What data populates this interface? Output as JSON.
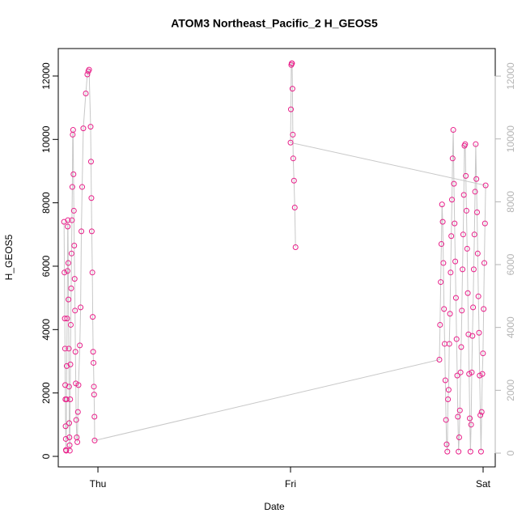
{
  "chart_data": {
    "type": "scatter-line",
    "title": "ATOM3 Northeast_Pacific_2 H_GEOS5",
    "xlabel": "Date",
    "ylabel": "H_GEOS5",
    "x": [
      -0.176,
      -0.174,
      -0.172,
      -0.171,
      -0.17,
      -0.169,
      -0.168,
      -0.167,
      -0.166,
      -0.165,
      -0.163,
      -0.162,
      -0.16,
      -0.158,
      -0.157,
      -0.156,
      -0.154,
      -0.153,
      -0.151,
      -0.15,
      -0.149,
      -0.148,
      -0.147,
      -0.146,
      -0.144,
      -0.143,
      -0.141,
      -0.139,
      -0.137,
      -0.135,
      -0.133,
      -0.131,
      -0.129,
      -0.127,
      -0.125,
      -0.123,
      -0.121,
      -0.119,
      -0.117,
      -0.115,
      -0.113,
      -0.11,
      -0.107,
      -0.104,
      -0.101,
      -0.094,
      -0.09,
      -0.086,
      -0.082,
      -0.076,
      -0.063,
      -0.055,
      -0.05,
      -0.046,
      -0.038,
      -0.036,
      -0.034,
      -0.032,
      -0.029,
      -0.027,
      -0.025,
      -0.023,
      -0.021,
      -0.02,
      -0.018,
      -0.017,
      1.773,
      1.7764,
      1.7799,
      1.7833,
      1.7867,
      1.7902,
      1.7936,
      1.797,
      1.8004,
      1.8039,
      1.8073,
      1.8107,
      1.8142,
      1.8176,
      1.821,
      1.8245,
      1.8279,
      1.8313,
      1.8347,
      1.8382,
      1.8416,
      1.845,
      1.8485,
      1.8519,
      1.8553,
      1.8588,
      1.8622,
      1.8656,
      1.869,
      1.8725,
      1.8759,
      1.8793,
      1.8828,
      1.8862,
      1.8896,
      1.8931,
      1.8965,
      1.8999,
      1.9033,
      1.9068,
      1.9102,
      1.9136,
      1.9171,
      1.9205,
      1.9239,
      1.9274,
      1.9308,
      1.9342,
      1.9376,
      1.9411,
      1.9445,
      1.9479,
      1.9514,
      1.9548,
      1.9582,
      1.9617,
      1.9651,
      1.9685,
      1.9719,
      1.9754,
      1.9788,
      1.9822,
      1.9857,
      1.9891,
      1.9925,
      1.996,
      1.9994,
      2.0028,
      2.0062,
      2.0097,
      2.0131,
      1.0,
      1.002,
      1.004,
      1.006,
      1.008,
      1.01,
      1.012,
      1.014,
      1.018,
      1.022,
      1.026
    ],
    "values": [
      7400,
      5800,
      4350,
      3400,
      2250,
      1800,
      950,
      550,
      200,
      180,
      1800,
      2850,
      4350,
      5850,
      7250,
      7450,
      6100,
      4950,
      3400,
      2200,
      1050,
      600,
      350,
      180,
      1800,
      2900,
      4150,
      5300,
      6400,
      7450,
      8500,
      10150,
      10300,
      8900,
      7750,
      6650,
      5600,
      4600,
      3300,
      2300,
      1150,
      600,
      450,
      1400,
      2250,
      3500,
      4700,
      7100,
      8500,
      10350,
      11450,
      12050,
      12150,
      12200,
      10400,
      9300,
      8150,
      7100,
      5800,
      4400,
      3300,
      2950,
      2200,
      1950,
      1250,
      500,
      3050,
      4150,
      5500,
      6700,
      7950,
      7400,
      6100,
      4650,
      3550,
      2400,
      1150,
      380,
      150,
      1800,
      2100,
      3550,
      4500,
      5800,
      6950,
      8100,
      9400,
      10300,
      8600,
      7350,
      6150,
      5000,
      3700,
      2550,
      1250,
      150,
      600,
      1450,
      2650,
      3450,
      4600,
      5900,
      7000,
      8250,
      9800,
      9850,
      8850,
      7750,
      6550,
      5150,
      3850,
      2600,
      1200,
      150,
      1000,
      2650,
      3800,
      4700,
      5900,
      7000,
      8350,
      9850,
      8750,
      7700,
      6400,
      5050,
      3900,
      2550,
      1300,
      150,
      1400,
      2600,
      3250,
      4650,
      6100,
      7350,
      8550,
      9900,
      10950,
      12350,
      12400,
      12400,
      11600,
      10150,
      9400,
      8700,
      7850,
      6600
    ],
    "color": "#e8208a",
    "line_color": "#c8c8c8",
    "xlim": [
      -0.206,
      2.063
    ],
    "xticks": [
      {
        "value": 0,
        "label": "Thu"
      },
      {
        "value": 1,
        "label": "Fri"
      },
      {
        "value": 2,
        "label": "Sat"
      }
    ],
    "ylim": [
      -332,
      12867
    ],
    "yticks": [
      0,
      2000,
      4000,
      6000,
      8000,
      10000,
      12000
    ],
    "y2lim": [
      -438,
      12877
    ],
    "y2ticks": [
      0,
      2000,
      4000,
      6000,
      8000,
      10000,
      12000
    ],
    "y2_color": "#b4b4b4"
  }
}
